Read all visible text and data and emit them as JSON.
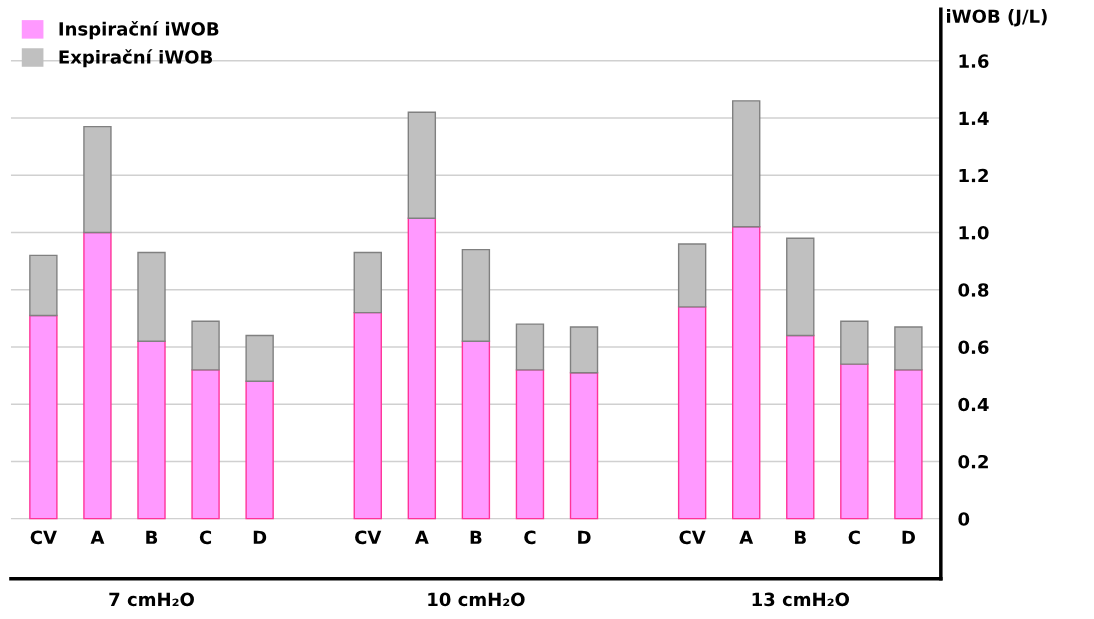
{
  "chart_data": {
    "type": "bar",
    "stacked": true,
    "ylabel": "iWOB (J/L)",
    "categories": [
      "CV",
      "A",
      "B",
      "C",
      "D",
      null,
      "CV",
      "A",
      "B",
      "C",
      "D",
      null,
      "CV",
      "A",
      "B",
      "C",
      "D"
    ],
    "series": [
      {
        "name": "Inspirační iWOB",
        "color": "#ff99ff",
        "values": [
          0.71,
          1.0,
          0.62,
          0.52,
          0.48,
          null,
          0.72,
          1.05,
          0.62,
          0.52,
          0.51,
          null,
          0.74,
          1.02,
          0.64,
          0.54,
          0.52
        ]
      },
      {
        "name": "Expirační iWOB",
        "color": "#c0c0c0",
        "values": [
          0.21,
          0.37,
          0.31,
          0.17,
          0.16,
          null,
          0.21,
          0.37,
          0.32,
          0.16,
          0.16,
          null,
          0.22,
          0.44,
          0.34,
          0.15,
          0.15
        ]
      }
    ],
    "annotations": [
      "7 cmH₂O",
      "10 cmH₂O",
      "13 cmH₂O"
    ],
    "ylim": [
      -0.21,
      1.78
    ],
    "yticks": [
      0,
      {
        "value": 0.2,
        "label": "0.2"
      },
      {
        "value": 0.4,
        "label": "0.4"
      },
      {
        "value": 0.6,
        "label": "0.6"
      },
      {
        "value": 0.8,
        "label": "0.8"
      },
      {
        "value": 1,
        "label": "1.0"
      },
      {
        "value": 1.2,
        "label": "1.2"
      },
      {
        "value": 1.4,
        "label": "1.4"
      },
      {
        "value": 1.6,
        "label": "1.6"
      }
    ],
    "grid": "y",
    "legend": "top left"
  }
}
